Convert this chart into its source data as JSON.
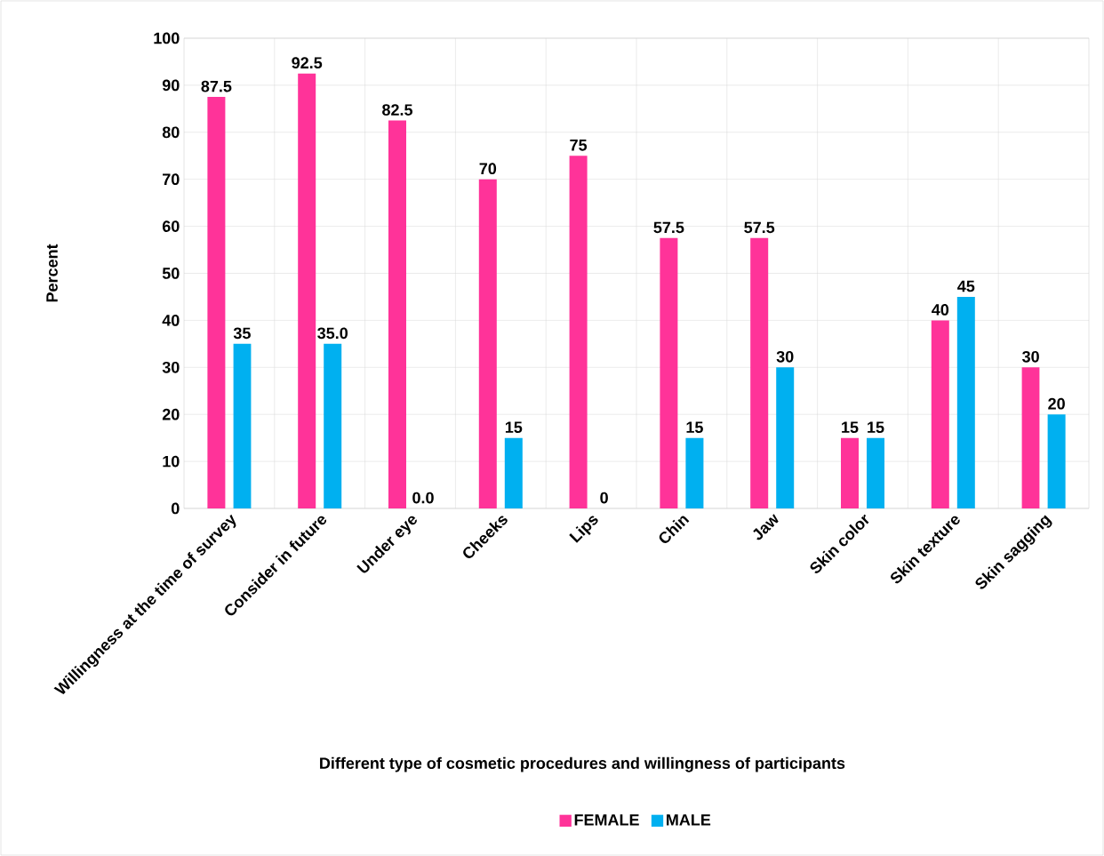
{
  "chart_data": {
    "type": "bar",
    "xlabel": "Different type of cosmetic procedures and willingness of participants",
    "ylabel": "Percent",
    "categories": [
      "Willingness at the time of survey",
      "Consider in future",
      "Under eye",
      "Cheeks",
      "Lips",
      "Chin",
      "Jaw",
      "Skin color",
      "Skin texture",
      "Skin sagging"
    ],
    "series": [
      {
        "name": "FEMALE",
        "color": "#ff3399",
        "values": [
          87.5,
          92.5,
          82.5,
          70,
          75,
          57.5,
          57.5,
          15,
          40,
          30
        ],
        "value_labels": [
          "87.5",
          "92.5",
          "82.5",
          "70",
          "75",
          "57.5",
          "57.5",
          "15",
          "40",
          "30"
        ]
      },
      {
        "name": "MALE",
        "color": "#00b0f0",
        "values": [
          35,
          35,
          0,
          15,
          0,
          15,
          30,
          15,
          45,
          20
        ],
        "value_labels": [
          "35",
          "35.0",
          "0.0",
          "15",
          "0",
          "15",
          "30",
          "15",
          "45",
          "20"
        ]
      }
    ],
    "ylim": [
      0,
      100
    ],
    "yticks": [
      0,
      10,
      20,
      30,
      40,
      50,
      60,
      70,
      80,
      90,
      100
    ],
    "grid": true,
    "legend": "bottom"
  }
}
